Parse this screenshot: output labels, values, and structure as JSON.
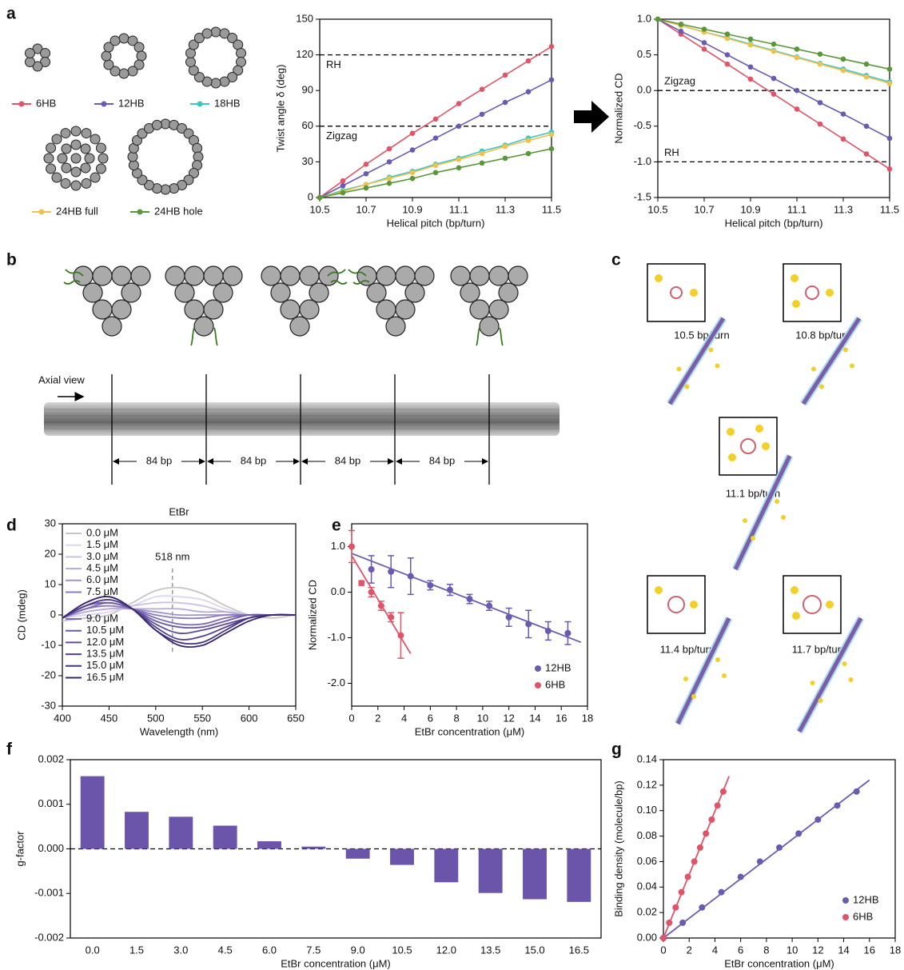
{
  "panel_labels": [
    "a",
    "b",
    "c",
    "d",
    "e",
    "f",
    "g"
  ],
  "panel_b": {
    "axial_view": "Axial view",
    "spacings": [
      "84 bp",
      "84 bp",
      "84 bp",
      "84 bp"
    ]
  },
  "panel_c": {
    "structures": [
      "10.5 bp/turn",
      "10.8 bp/turn",
      "11.1 bp/turn",
      "11.4 bp/turn",
      "11.7 bp/turn"
    ]
  },
  "chart_data": [
    {
      "type": "line",
      "xlabel": "Helical pitch (bp/turn)",
      "ylabel": "Twist angle δ (deg)",
      "x": [
        10.5,
        10.6,
        10.7,
        10.8,
        10.9,
        11.0,
        11.1,
        11.2,
        11.3,
        11.4,
        11.5
      ],
      "xlim": [
        10.5,
        11.5
      ],
      "xticks": [
        10.5,
        10.7,
        10.9,
        11.1,
        11.3,
        11.5
      ],
      "ylim": [
        0,
        150
      ],
      "yticks": [
        0,
        30,
        60,
        90,
        120,
        150
      ],
      "markers": true,
      "reference_lines": [
        {
          "value": 120,
          "label": "RH"
        },
        {
          "value": 60,
          "label": "Zigzag"
        }
      ],
      "series": [
        {
          "name": "6HB",
          "color": "#e05468",
          "values": [
            0,
            14,
            28,
            41,
            54,
            66,
            79,
            91,
            103,
            115,
            127
          ]
        },
        {
          "name": "12HB",
          "color": "#6b5bb0",
          "values": [
            0,
            10,
            20,
            30,
            40,
            50,
            60,
            70,
            80,
            89,
            99
          ]
        },
        {
          "name": "18HB",
          "color": "#3fc4c4",
          "values": [
            0,
            6,
            11,
            17,
            22,
            28,
            33,
            39,
            44,
            50,
            55
          ]
        },
        {
          "name": "24HB full",
          "color": "#eec24e",
          "values": [
            0,
            5,
            11,
            16,
            21,
            27,
            32,
            37,
            43,
            48,
            53
          ]
        },
        {
          "name": "24HB hole",
          "color": "#5b963a",
          "values": [
            0,
            4,
            8,
            12,
            16,
            21,
            25,
            29,
            33,
            37,
            41
          ]
        }
      ]
    },
    {
      "type": "line",
      "xlabel": "Helical pitch (bp/turn)",
      "ylabel": "Normalized CD",
      "x": [
        10.5,
        10.6,
        10.7,
        10.8,
        10.9,
        11.0,
        11.1,
        11.2,
        11.3,
        11.4,
        11.5
      ],
      "xlim": [
        10.5,
        11.5
      ],
      "xticks": [
        10.5,
        10.7,
        10.9,
        11.1,
        11.3,
        11.5
      ],
      "ylim": [
        -1.5,
        1
      ],
      "yticks": [
        {
          "value": 1,
          "label": "1.0"
        },
        0.5,
        {
          "value": 0,
          "label": "0.0"
        },
        -0.5,
        {
          "value": -1,
          "label": "-1.0"
        },
        -1.5
      ],
      "markers": true,
      "reference_lines": [
        {
          "value": 0,
          "label": "Zigzag"
        },
        {
          "value": -1,
          "label": "RH"
        }
      ],
      "series": [
        {
          "color": "#e05468",
          "values": [
            1,
            0.79,
            0.58,
            0.37,
            0.16,
            -0.05,
            -0.26,
            -0.47,
            -0.68,
            -0.89,
            -1.1
          ]
        },
        {
          "color": "#6b5bb0",
          "values": [
            1,
            0.83,
            0.67,
            0.5,
            0.33,
            0.17,
            0,
            -0.17,
            -0.33,
            -0.5,
            -0.67
          ]
        },
        {
          "color": "#3fc4c4",
          "values": [
            1,
            0.91,
            0.82,
            0.74,
            0.65,
            0.56,
            0.47,
            0.38,
            0.3,
            0.21,
            0.12
          ]
        },
        {
          "color": "#eec24e",
          "values": [
            1,
            0.91,
            0.82,
            0.73,
            0.64,
            0.55,
            0.46,
            0.37,
            0.28,
            0.19,
            0.1
          ]
        },
        {
          "color": "#5b963a",
          "values": [
            1,
            0.93,
            0.86,
            0.79,
            0.72,
            0.65,
            0.58,
            0.51,
            0.44,
            0.37,
            0.3
          ]
        }
      ]
    },
    {
      "type": "line",
      "title": "EtBr",
      "xlabel": "Wavelength (nm)",
      "ylabel": "CD (mdeg)",
      "x": [
        400,
        425,
        450,
        475,
        500,
        525,
        550,
        575,
        600,
        625,
        650
      ],
      "xlim": [
        400,
        650
      ],
      "xticks": [
        400,
        450,
        500,
        550,
        600,
        650
      ],
      "ylim": [
        -30,
        30
      ],
      "yticks": [
        -30,
        -20,
        -10,
        0,
        10,
        20,
        30
      ],
      "smooth": true,
      "legend": "upper left",
      "annotation": {
        "x": 518,
        "label": "518 nm"
      },
      "series": [
        {
          "name": "0.0 μM",
          "color": "#c6c6c6",
          "values": [
            -2,
            -1,
            0,
            4,
            8,
            9,
            7,
            3,
            0,
            -1,
            0
          ]
        },
        {
          "name": "1.5 μM",
          "color": "#ddd6ec",
          "values": [
            -1,
            0,
            1,
            3,
            6,
            6,
            5,
            2,
            0,
            0,
            0
          ]
        },
        {
          "name": "3.0 μM",
          "color": "#cbc1e3",
          "values": [
            -1,
            1,
            2,
            3,
            4,
            4,
            3,
            1,
            0,
            0,
            0
          ]
        },
        {
          "name": "4.5 μM",
          "color": "#b6aad6",
          "values": [
            -1,
            1,
            2,
            2,
            2,
            2,
            1,
            1,
            0,
            0,
            0
          ]
        },
        {
          "name": "6.0 μM",
          "color": "#a193c9",
          "values": [
            -1,
            2,
            3,
            2,
            1,
            0,
            0,
            0,
            0,
            0,
            0
          ]
        },
        {
          "name": "7.5 μM",
          "color": "#8c7cbd",
          "values": [
            -1,
            2,
            3,
            2,
            0,
            -1,
            -1,
            0,
            0,
            0,
            0
          ]
        },
        {
          "name": "9.0 μM",
          "color": "#7b69b1",
          "values": [
            -1,
            2,
            4,
            2,
            -1,
            -3,
            -3,
            -1,
            0,
            0,
            0
          ]
        },
        {
          "name": "10.5 μM",
          "color": "#6d5aa5",
          "values": [
            -1,
            3,
            4,
            2,
            -2,
            -4,
            -4,
            -2,
            0,
            0,
            0
          ]
        },
        {
          "name": "12.0 μM",
          "color": "#604c99",
          "values": [
            -1,
            3,
            5,
            2,
            -3,
            -6,
            -5,
            -3,
            -1,
            0,
            0
          ]
        },
        {
          "name": "13.5 μM",
          "color": "#533f8c",
          "values": [
            -1,
            3,
            5,
            2,
            -4,
            -8,
            -7,
            -4,
            -1,
            0,
            0
          ]
        },
        {
          "name": "15.0 μM",
          "color": "#46337e",
          "values": [
            -1,
            4,
            6,
            2,
            -5,
            -9,
            -9,
            -5,
            -1,
            0,
            0
          ]
        },
        {
          "name": "16.5 μM",
          "color": "#3a2870",
          "values": [
            -1,
            4,
            6,
            2,
            -5,
            -10,
            -10,
            -6,
            -2,
            0,
            0
          ]
        }
      ]
    },
    {
      "type": "scatter",
      "xlabel": "EtBr concentration (μM)",
      "ylabel": "Normalized CD",
      "xlim": [
        0,
        18
      ],
      "xticks": [
        0,
        2,
        4,
        6,
        8,
        10,
        12,
        14,
        16,
        18
      ],
      "ylim": [
        -2.5,
        1.5
      ],
      "yticks": [
        {
          "value": 1,
          "label": "1.0"
        },
        {
          "value": 0,
          "label": "0.0"
        },
        {
          "value": -1,
          "label": "-1.0"
        },
        {
          "value": -2,
          "label": "-2.0"
        }
      ],
      "legend": "lower right",
      "series": [
        {
          "name": "12HB",
          "color": "#6b5bb0",
          "x": [
            1.5,
            3,
            4.5,
            6,
            7.5,
            9,
            10.5,
            12,
            13.5,
            15,
            16.5
          ],
          "values": [
            0.5,
            0.45,
            0.35,
            0.15,
            0.05,
            -0.15,
            -0.3,
            -0.55,
            -0.7,
            -0.85,
            -0.9
          ],
          "errors": [
            0.3,
            0.35,
            0.4,
            0.1,
            0.12,
            0.1,
            0.1,
            0.2,
            0.3,
            0.2,
            0.25
          ],
          "fit_x": [
            0,
            17.5
          ],
          "fit_y": [
            0.85,
            -1.1
          ]
        },
        {
          "name": "6HB",
          "color": "#e05468",
          "x": [
            0,
            0.75,
            1.5,
            2.25,
            3,
            3.75
          ],
          "values": [
            1.0,
            0.2,
            0.0,
            -0.3,
            -0.55,
            -0.95
          ],
          "errors": [
            0.35,
            0.05,
            0.1,
            0.1,
            0.1,
            0.5
          ],
          "fit_x": [
            0,
            4.5
          ],
          "fit_y": [
            0.8,
            -1.35
          ]
        }
      ]
    },
    {
      "type": "bar",
      "xlabel": "EtBr concentration (μM)",
      "ylabel": "g-factor",
      "color": "#6b55aa",
      "categories": [
        "0.0",
        "1.5",
        "3.0",
        "4.5",
        "6.0",
        "7.5",
        "9.0",
        "10.5",
        "12.0",
        "13.5",
        "15.0",
        "16.5"
      ],
      "values": [
        0.00163,
        0.00083,
        0.00072,
        0.00052,
        0.00017,
        5e-05,
        -0.00022,
        -0.00036,
        -0.00075,
        -0.00099,
        -0.00113,
        -0.00119
      ],
      "ylim": [
        -0.002,
        0.002
      ],
      "yticks": [
        0.002,
        0.001,
        {
          "value": 0,
          "label": "0.000"
        },
        -0.001,
        -0.002
      ],
      "reference_lines": [
        {
          "value": 0
        }
      ]
    },
    {
      "type": "scatter",
      "xlabel": "EtBr concentration (μM)",
      "ylabel": "Binding density (molecule/bp)",
      "xlim": [
        0,
        18
      ],
      "xticks": [
        0,
        2,
        4,
        6,
        8,
        10,
        12,
        14,
        16,
        18
      ],
      "ylim": [
        0,
        0.14
      ],
      "yticks": [
        {
          "value": 0,
          "label": "0.00"
        },
        0.02,
        0.04,
        0.06,
        0.08,
        {
          "value": 0.1,
          "label": "0.10"
        },
        0.12,
        0.14
      ],
      "legend": "lower right",
      "series": [
        {
          "name": "12HB",
          "color": "#6b5bb0",
          "x": [
            0,
            1.5,
            3,
            4.5,
            6,
            7.5,
            9,
            10.5,
            12,
            13.5,
            15
          ],
          "values": [
            0,
            0.012,
            0.024,
            0.036,
            0.048,
            0.06,
            0.071,
            0.082,
            0.093,
            0.104,
            0.115
          ],
          "fit_x": [
            0,
            16
          ],
          "fit_y": [
            0,
            0.124
          ]
        },
        {
          "name": "6HB",
          "color": "#e05468",
          "x": [
            0,
            0.45,
            0.95,
            1.4,
            1.9,
            2.4,
            2.85,
            3.3,
            3.75,
            4.2,
            4.65
          ],
          "values": [
            0,
            0.012,
            0.024,
            0.036,
            0.048,
            0.06,
            0.071,
            0.082,
            0.093,
            0.104,
            0.115
          ],
          "fit_x": [
            0,
            5.1
          ],
          "fit_y": [
            0,
            0.127
          ]
        }
      ]
    }
  ]
}
